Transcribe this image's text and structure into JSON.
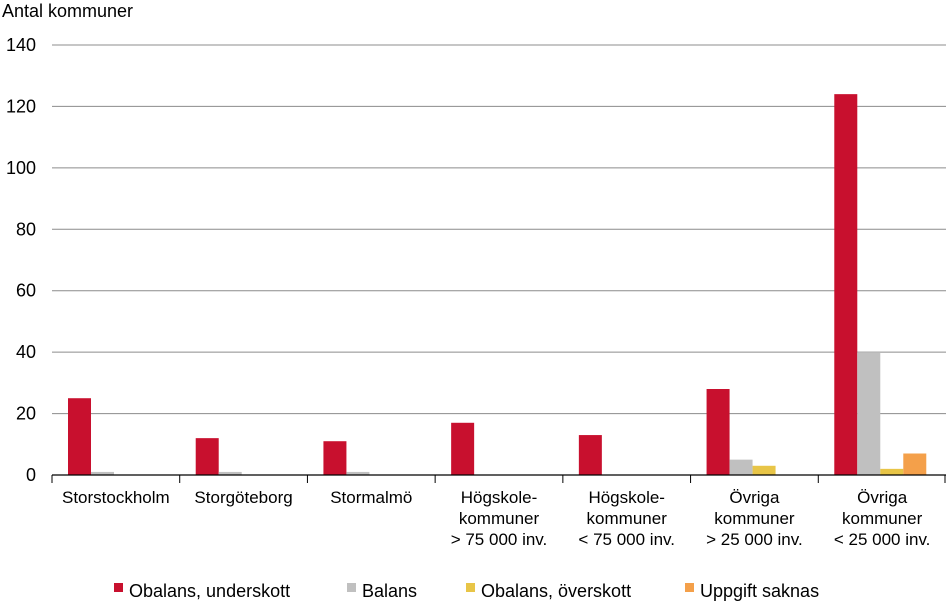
{
  "chart_data": {
    "type": "bar",
    "title": "",
    "ylabel": "Antal kommuner",
    "xlabel": "",
    "ylim": [
      0,
      140
    ],
    "yticks": [
      0,
      20,
      40,
      60,
      80,
      100,
      120,
      140
    ],
    "grid": true,
    "legend_position": "bottom",
    "categories": [
      [
        "Storstockholm"
      ],
      [
        "Storgöteborg"
      ],
      [
        "Stormalmö"
      ],
      [
        "Högskole-",
        "kommuner",
        "> 75 000 inv."
      ],
      [
        "Högskole-",
        "kommuner",
        "< 75 000 inv."
      ],
      [
        "Övriga",
        "kommuner",
        "> 25 000 inv."
      ],
      [
        "Övriga",
        "kommuner",
        "< 25 000 inv."
      ]
    ],
    "series": [
      {
        "name": "Obalans, underskott",
        "color": "#c8102e",
        "values": [
          25,
          12,
          11,
          17,
          13,
          28,
          124
        ]
      },
      {
        "name": "Balans",
        "color": "#c0c0c0",
        "values": [
          1,
          1,
          1,
          0,
          0,
          5,
          40
        ]
      },
      {
        "name": "Obalans, överskott",
        "color": "#e8c547",
        "values": [
          0,
          0,
          0,
          0,
          0,
          3,
          2
        ]
      },
      {
        "name": "Uppgift saknas",
        "color": "#f4a04a",
        "values": [
          0,
          0,
          0,
          0,
          0,
          0,
          7
        ]
      }
    ]
  }
}
